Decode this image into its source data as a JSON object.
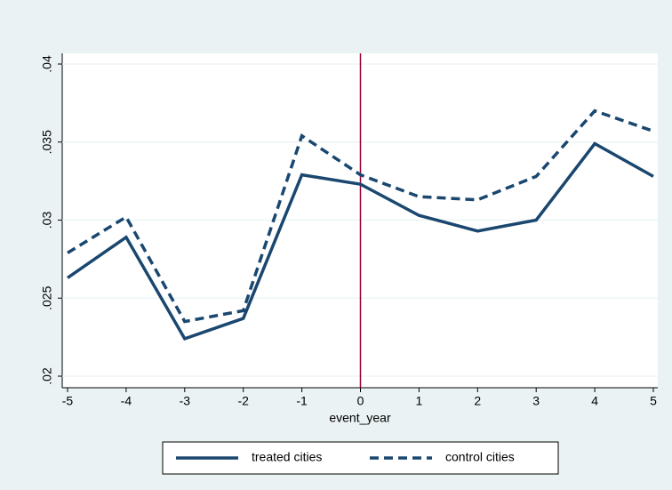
{
  "chart_data": {
    "type": "line",
    "x": [
      -5,
      -4,
      -3,
      -2,
      -1,
      0,
      1,
      2,
      3,
      4,
      5
    ],
    "xlabel": "event_year",
    "series": [
      {
        "name": "treated cities",
        "color": "#1a476f",
        "style": "solid",
        "values": [
          0.0263,
          0.0289,
          0.0224,
          0.0237,
          0.0329,
          0.0323,
          0.0303,
          0.0293,
          0.03,
          0.0349,
          0.0328
        ]
      },
      {
        "name": "control cities",
        "color": "#1a476f",
        "style": "dashed",
        "values": [
          0.0279,
          0.0302,
          0.0235,
          0.0242,
          0.0354,
          0.0329,
          0.0315,
          0.0313,
          0.0328,
          0.037,
          0.0357
        ]
      }
    ],
    "xlim": [
      -5,
      5
    ],
    "xticks": [
      -5,
      -4,
      -3,
      -2,
      -1,
      0,
      1,
      2,
      3,
      4,
      5
    ],
    "ylim": [
      0.02,
      0.04
    ],
    "yticks": [
      {
        "value": 0.02,
        "label": ".02"
      },
      {
        "value": 0.025,
        "label": ".025"
      },
      {
        "value": 0.03,
        "label": ".03"
      },
      {
        "value": 0.035,
        "label": ".035"
      },
      {
        "value": 0.04,
        "label": ".04"
      }
    ],
    "grid": true,
    "vline": 0,
    "vline_color": "#990033",
    "legend": "bottom"
  }
}
